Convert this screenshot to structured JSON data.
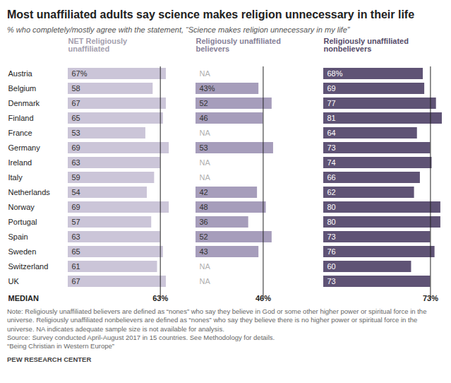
{
  "title": "Most unaffiliated adults say science makes religion unnecessary in their life",
  "subtitle": "% who completely/mostly agree with the statement, “Science makes religion unnecessary in my life”",
  "median_label": "MEDIAN",
  "notes": [
    "Note: Religiously unaffiliated believers are defined as “nones” who say they believe in God or some other higher power or spiritual force in the universe. Religiously unaffiliated nonbelievers are defined as “nones” who say they believe there is no higher power or spiritual force in the universe. NA indicates adequate sample size is not available for analysis.",
    "Source: Survey conducted April-August 2017 in 15 countries. See Methodology for details.",
    "“Being Christian in Western Europe”",
    "PEW RESEARCH CENTER"
  ],
  "chart_data": [
    {
      "type": "bar",
      "orientation": "horizontal",
      "title": "NET Religiously\nunaffiliated",
      "categories": [
        "Austria",
        "Belgium",
        "Denmark",
        "Finland",
        "France",
        "Germany",
        "Ireland",
        "Italy",
        "Netherlands",
        "Norway",
        "Portugal",
        "Spain",
        "Sweden",
        "Switzerland",
        "UK"
      ],
      "values": [
        67,
        58,
        67,
        65,
        53,
        69,
        63,
        59,
        54,
        69,
        57,
        63,
        65,
        61,
        67
      ],
      "value_labels": [
        "67%",
        "58",
        "67",
        "65",
        "53",
        "69",
        "63",
        "59",
        "54",
        "69",
        "57",
        "63",
        "65",
        "61",
        "67"
      ],
      "color": "#cbc5d8",
      "xlim": [
        0,
        81
      ],
      "tick_labels": "y",
      "data_labels": true,
      "median": {
        "value": 63,
        "label": "63%"
      }
    },
    {
      "type": "bar",
      "orientation": "horizontal",
      "title": "Religiously unaffiliated\nbelievers",
      "categories": [
        "Austria",
        "Belgium",
        "Denmark",
        "Finland",
        "France",
        "Germany",
        "Ireland",
        "Italy",
        "Netherlands",
        "Norway",
        "Portugal",
        "Spain",
        "Sweden",
        "Switzerland",
        "UK"
      ],
      "values": [
        null,
        43,
        52,
        46,
        null,
        53,
        null,
        null,
        42,
        48,
        36,
        52,
        43,
        null,
        null
      ],
      "value_labels": [
        "NA",
        "43%",
        "52",
        "46",
        "NA",
        "53",
        "NA",
        "NA",
        "42",
        "48",
        "36",
        "52",
        "43",
        "NA",
        "NA"
      ],
      "color": "#a69dbb",
      "xlim": [
        0,
        81
      ],
      "tick_labels": false,
      "data_labels": true,
      "median": {
        "value": 46,
        "label": "46%"
      }
    },
    {
      "type": "bar",
      "orientation": "horizontal",
      "title": "Religiously unaffiliated\nnonbelievers",
      "categories": [
        "Austria",
        "Belgium",
        "Denmark",
        "Finland",
        "France",
        "Germany",
        "Ireland",
        "Italy",
        "Netherlands",
        "Norway",
        "Portugal",
        "Spain",
        "Sweden",
        "Switzerland",
        "UK"
      ],
      "values": [
        68,
        69,
        77,
        81,
        64,
        73,
        74,
        66,
        62,
        80,
        80,
        73,
        76,
        60,
        73
      ],
      "value_labels": [
        "68%",
        "69",
        "77",
        "81",
        "64",
        "73",
        "74",
        "66",
        "62",
        "80",
        "80",
        "73",
        "76",
        "60",
        "73"
      ],
      "color": "#5f5375",
      "xlim": [
        0,
        81
      ],
      "tick_labels": false,
      "data_labels": true,
      "median": {
        "value": 73,
        "label": "73%"
      }
    }
  ]
}
